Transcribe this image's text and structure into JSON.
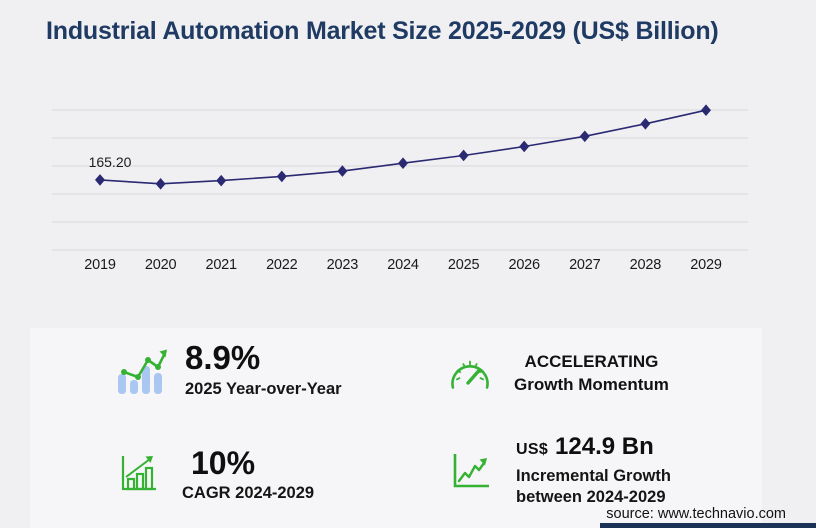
{
  "header": {
    "title": "Industrial Automation Market Size 2025-2029 (US$ Billion)"
  },
  "chart_data": {
    "type": "line",
    "title": "Industrial Automation Market Size 2025-2029 (US$ Billion)",
    "categories": [
      "2019",
      "2020",
      "2021",
      "2022",
      "2023",
      "2024",
      "2025",
      "2026",
      "2027",
      "2028",
      "2029"
    ],
    "values": [
      165.2,
      156,
      163.5,
      173.5,
      186,
      204.6,
      222.8,
      244,
      268,
      297.5,
      329.5
    ],
    "first_point_label": "165.20",
    "xlabel": "",
    "ylabel": "",
    "ylim": [
      0,
      330
    ],
    "gridlines": 6,
    "grid": "horizontal-only",
    "legend": "none",
    "line_color": "#2a2972",
    "marker": "diamond",
    "marker_color": "#2a2972"
  },
  "stats": [
    {
      "icon": "growth-bars-icon",
      "value": "8.9%",
      "label": "2025 Year-over-Year"
    },
    {
      "icon": "speedometer-icon",
      "title": "ACCELERATING",
      "subtitle": "Growth Momentum"
    },
    {
      "icon": "bar-chart-growth-icon",
      "value": "10%",
      "label": "CAGR 2024-2029"
    },
    {
      "icon": "incremental-growth-icon",
      "currency": "US$",
      "value": "124.9 Bn",
      "label_line1": "Incremental Growth",
      "label_line2": "between 2024-2029"
    }
  ],
  "source": {
    "text": "source: www.technavio.com"
  },
  "colors": {
    "title_navy": "#1f3a63",
    "line_navy": "#2a2972",
    "green": "#35b234",
    "light_blue": "#a9c7f0",
    "gridline": "#d7d7da",
    "accent_bar": "#1c3357"
  }
}
